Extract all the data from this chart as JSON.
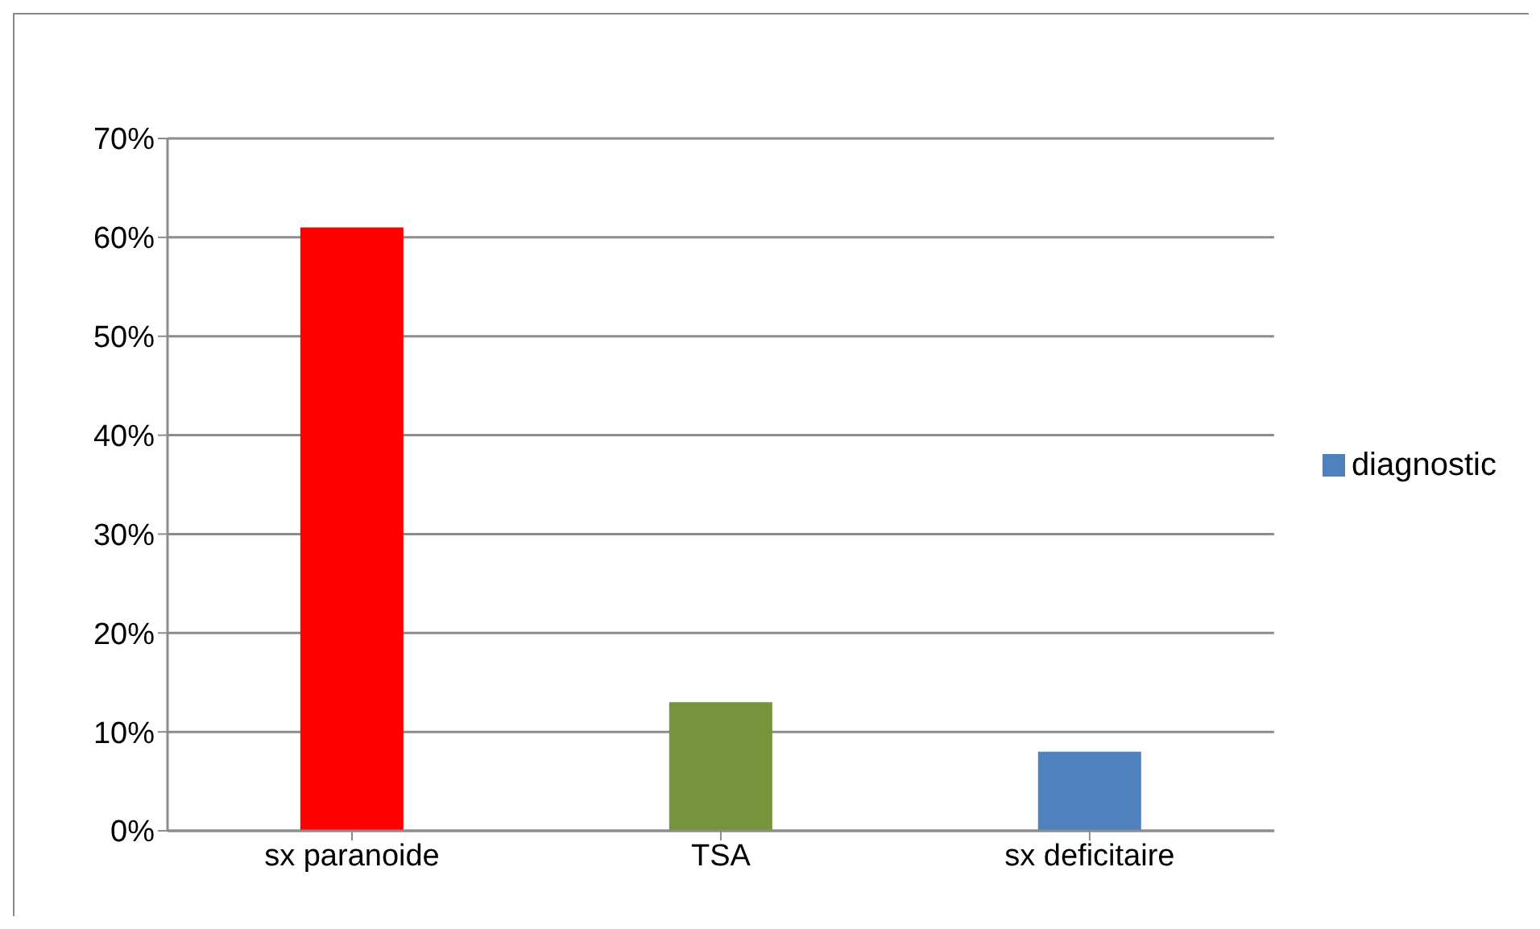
{
  "chart_data": {
    "type": "bar",
    "categories": [
      "sx paranoide",
      "TSA",
      "sx deficitaire"
    ],
    "series": [
      {
        "name": "diagnostic",
        "color": "#4f81bd",
        "colors": [
          "#ff0000",
          "#77933c",
          "#4f81bd"
        ],
        "values": [
          61,
          13,
          8
        ]
      }
    ],
    "ylim": [
      0,
      70
    ],
    "yticks": [
      {
        "value": 0,
        "label": "0%"
      },
      {
        "value": 10,
        "label": "10%"
      },
      {
        "value": 20,
        "label": "20%"
      },
      {
        "value": 30,
        "label": "30%"
      },
      {
        "value": 40,
        "label": "40%"
      },
      {
        "value": 50,
        "label": "50%"
      },
      {
        "value": 60,
        "label": "60%"
      },
      {
        "value": 70,
        "label": "70%"
      }
    ],
    "grid": "y",
    "legend": "right"
  }
}
